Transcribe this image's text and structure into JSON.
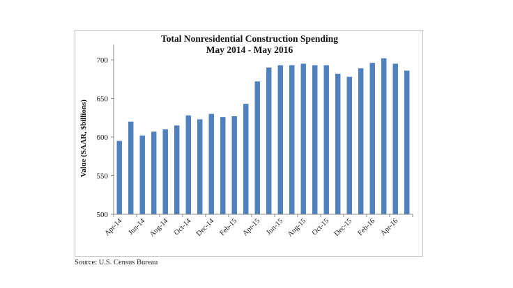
{
  "chart_data": {
    "type": "bar",
    "title": "Total Nonresidential Construction Spending",
    "subtitle": "May 2014 - May 2016",
    "xlabel": "",
    "ylabel": "Value (SAAR, $billions)",
    "ylim": [
      500,
      720
    ],
    "yticks": [
      500,
      550,
      600,
      650,
      700
    ],
    "grid": false,
    "legend": "none",
    "bar_color": "#4F81BD",
    "categories": [
      "Apr-14",
      "May-14",
      "Jun-14",
      "Jul-14",
      "Aug-14",
      "Sep-14",
      "Oct-14",
      "Nov-14",
      "Dec-14",
      "Jan-15",
      "Feb-15",
      "Mar-15",
      "Apr-15",
      "May-15",
      "Jun-15",
      "Jul-15",
      "Aug-15",
      "Sep-15",
      "Oct-15",
      "Nov-15",
      "Dec-15",
      "Jan-16",
      "Feb-16",
      "Mar-16",
      "Apr-16",
      "May-16"
    ],
    "tick_labels": [
      "Apr-14",
      "Jun-14",
      "Aug-14",
      "Oct-14",
      "Dec-14",
      "Feb-15",
      "Apr-15",
      "Jun-15",
      "Aug-15",
      "Oct-15",
      "Dec-15",
      "Feb-16",
      "Apr-16"
    ],
    "values": [
      595,
      620,
      602,
      607,
      610,
      615,
      628,
      623,
      630,
      626,
      627,
      643,
      672,
      690,
      693,
      693,
      695,
      693,
      693,
      682,
      678,
      689,
      696,
      702,
      695,
      686
    ]
  },
  "source": "Source:  U.S. Census Bureau"
}
